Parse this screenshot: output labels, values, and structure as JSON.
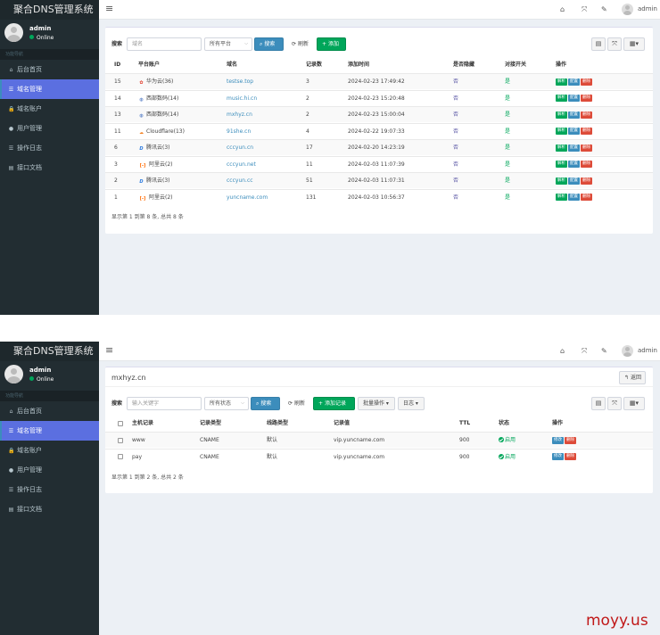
{
  "app": {
    "title": "聚合DNS管理系统",
    "user": "admin",
    "status": "Online",
    "nav_header": "功能导航",
    "top_user": "admin",
    "accent_color": "#5b6fe0"
  },
  "sidebar": {
    "items": [
      {
        "label": "后台首页",
        "icon": "home-icon"
      },
      {
        "label": "域名管理",
        "icon": "list-icon",
        "active": true
      },
      {
        "label": "域名账户",
        "icon": "lock-icon"
      },
      {
        "label": "用户管理",
        "icon": "user-icon"
      },
      {
        "label": "操作日志",
        "icon": "list-icon"
      },
      {
        "label": "接口文档",
        "icon": "book-icon"
      }
    ]
  },
  "domains_panel": {
    "search_label": "搜索",
    "search_placeholder": "域名",
    "platform_select": "所有平台",
    "search_button": "搜索",
    "refresh_button": "刷新",
    "add_button": "添加",
    "columns": [
      "ID",
      "平台账户",
      "域名",
      "记录数",
      "添加时间",
      "是否隐藏",
      "对接开关",
      "操作"
    ],
    "rows": [
      {
        "id": "15",
        "platform": "华为云(36)",
        "logo": "huawei",
        "domain": "testse.top",
        "records": "3",
        "time": "2024-02-23 17:49:42",
        "hidden": "否",
        "switch": "是"
      },
      {
        "id": "14",
        "platform": "西部数码(14)",
        "logo": "west",
        "domain": "music.hi.cn",
        "records": "2",
        "time": "2024-02-23 15:20:48",
        "hidden": "否",
        "switch": "是"
      },
      {
        "id": "13",
        "platform": "西部数码(14)",
        "logo": "west",
        "domain": "mxhyz.cn",
        "records": "2",
        "time": "2024-02-23 15:00:04",
        "hidden": "否",
        "switch": "是"
      },
      {
        "id": "11",
        "platform": "Cloudflare(13)",
        "logo": "cloudflare",
        "domain": "91she.cn",
        "records": "4",
        "time": "2024-02-22 19:07:33",
        "hidden": "否",
        "switch": "是"
      },
      {
        "id": "6",
        "platform": "腾讯云(3)",
        "logo": "dnspod",
        "domain": "cccyun.cn",
        "records": "17",
        "time": "2024-02-20 14:23:19",
        "hidden": "否",
        "switch": "是"
      },
      {
        "id": "3",
        "platform": "阿里云(2)",
        "logo": "aliyun",
        "domain": "cccyun.net",
        "records": "11",
        "time": "2024-02-03 11:07:39",
        "hidden": "否",
        "switch": "是"
      },
      {
        "id": "2",
        "platform": "腾讯云(3)",
        "logo": "dnspod",
        "domain": "cccyun.cc",
        "records": "51",
        "time": "2024-02-03 11:07:31",
        "hidden": "否",
        "switch": "是"
      },
      {
        "id": "1",
        "platform": "阿里云(2)",
        "logo": "aliyun",
        "domain": "yuncname.com",
        "records": "131",
        "time": "2024-02-03 10:56:37",
        "hidden": "否",
        "switch": "是"
      }
    ],
    "row_actions": [
      "解析",
      "配置",
      "删除"
    ],
    "footer": "显示第 1 到第 8 条, 总共 8 条"
  },
  "records_panel": {
    "domain_title": "mxhyz.cn",
    "back_button": "返回",
    "search_label": "搜索",
    "keyword_placeholder": "输入关键字",
    "status_select": "所有状态",
    "search_button": "搜索",
    "refresh_button": "刷新",
    "add_record_button": "添加记录",
    "batch_button": "批量操作",
    "log_button": "日志",
    "columns": [
      "主机记录",
      "记录类型",
      "线路类型",
      "记录值",
      "TTL",
      "状态",
      "操作"
    ],
    "rows": [
      {
        "host": "www",
        "type": "CNAME",
        "line": "默认",
        "value": "vip.yuncname.com",
        "ttl": "900",
        "status": "启用"
      },
      {
        "host": "pay",
        "type": "CNAME",
        "line": "默认",
        "value": "vip.yuncname.com",
        "ttl": "900",
        "status": "启用"
      }
    ],
    "row_actions": [
      "修改",
      "删除"
    ],
    "footer": "显示第 1 到第 2 条, 总共 2 条"
  },
  "watermark": "moyy.us"
}
